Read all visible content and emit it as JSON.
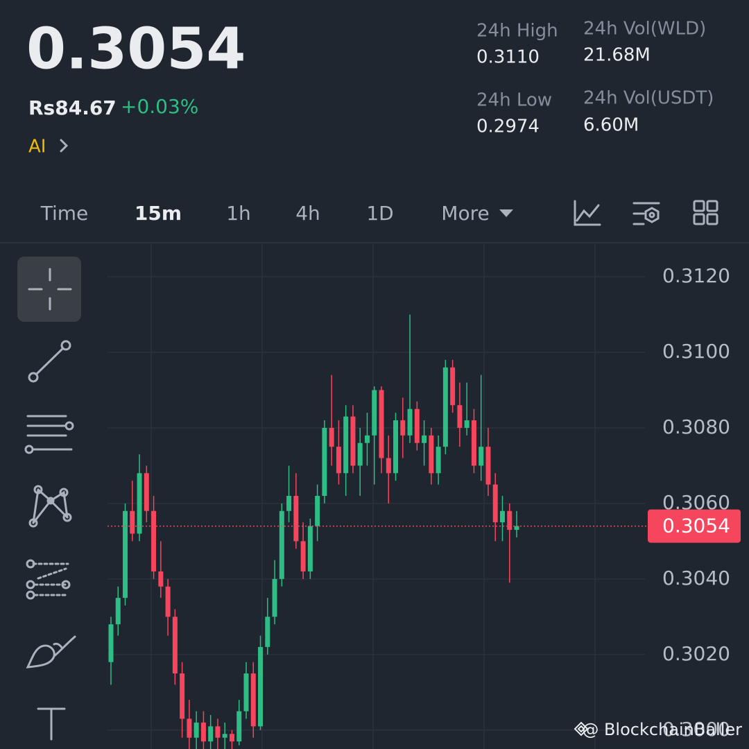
{
  "header": {
    "price": "0.3054",
    "fiat_price": "Rs84.67",
    "change": "+0.03%",
    "ai_label": "AI",
    "stats": [
      {
        "label": "24h High",
        "value": "0.3110"
      },
      {
        "label": "24h Low",
        "value": "0.2974"
      },
      {
        "label": "24h Vol(WLD)",
        "value": "21.68M"
      },
      {
        "label": "24h Vol(USDT)",
        "value": "6.60M"
      }
    ]
  },
  "tabs": [
    "Time",
    "15m",
    "1h",
    "4h",
    "1D",
    "More"
  ],
  "active_tab": 1,
  "watermark": "@ BlockchainBaller",
  "chart_data": {
    "type": "candlestick",
    "up_color": "#2ebd85",
    "down_color": "#f6465d",
    "grid": true,
    "ylim": [
      0.2995,
      0.3129
    ],
    "yticks": [
      {
        "value": 0.312,
        "label": "0.3120"
      },
      {
        "value": 0.31,
        "label": "0.3100"
      },
      {
        "value": 0.308,
        "label": "0.3080"
      },
      {
        "value": 0.306,
        "label": "0.3060"
      },
      {
        "value": 0.304,
        "label": "0.3040"
      },
      {
        "value": 0.302,
        "label": "0.3020"
      },
      {
        "value": 0.3,
        "label": "0.3000"
      }
    ],
    "last_price": 0.3054,
    "candles": [
      [
        0.3018,
        0.303,
        0.3012,
        0.3028
      ],
      [
        0.3028,
        0.3038,
        0.3025,
        0.3035
      ],
      [
        0.3035,
        0.306,
        0.3033,
        0.3058
      ],
      [
        0.3058,
        0.3066,
        0.305,
        0.3052
      ],
      [
        0.3052,
        0.3073,
        0.305,
        0.3068
      ],
      [
        0.3068,
        0.307,
        0.3055,
        0.3058
      ],
      [
        0.3058,
        0.3062,
        0.304,
        0.3042
      ],
      [
        0.3042,
        0.305,
        0.3035,
        0.3038
      ],
      [
        0.3038,
        0.304,
        0.3025,
        0.303
      ],
      [
        0.303,
        0.3032,
        0.3012,
        0.3015
      ],
      [
        0.3015,
        0.3018,
        0.2998,
        0.3003
      ],
      [
        0.3003,
        0.3008,
        0.2995,
        0.2998
      ],
      [
        0.2998,
        0.3005,
        0.2995,
        0.3002
      ],
      [
        0.3002,
        0.3005,
        0.2995,
        0.2997
      ],
      [
        0.2997,
        0.3004,
        0.2995,
        0.3001
      ],
      [
        0.3001,
        0.3003,
        0.2995,
        0.2998
      ],
      [
        0.2998,
        0.3002,
        0.2995,
        0.2999
      ],
      [
        0.2999,
        0.3,
        0.2995,
        0.2997
      ],
      [
        0.2997,
        0.3008,
        0.2996,
        0.3005
      ],
      [
        0.3005,
        0.3018,
        0.3003,
        0.3015
      ],
      [
        0.3015,
        0.3018,
        0.2998,
        0.3001
      ],
      [
        0.3001,
        0.3025,
        0.3,
        0.3022
      ],
      [
        0.3022,
        0.3035,
        0.302,
        0.303
      ],
      [
        0.303,
        0.3045,
        0.3028,
        0.304
      ],
      [
        0.304,
        0.306,
        0.3038,
        0.3058
      ],
      [
        0.3058,
        0.307,
        0.3055,
        0.3062
      ],
      [
        0.3062,
        0.3068,
        0.3048,
        0.305
      ],
      [
        0.305,
        0.3055,
        0.304,
        0.3042
      ],
      [
        0.3042,
        0.3056,
        0.304,
        0.3054
      ],
      [
        0.3054,
        0.3065,
        0.305,
        0.3062
      ],
      [
        0.3062,
        0.3082,
        0.306,
        0.308
      ],
      [
        0.308,
        0.3094,
        0.307,
        0.3075
      ],
      [
        0.3075,
        0.3082,
        0.3065,
        0.3068
      ],
      [
        0.3068,
        0.3086,
        0.3062,
        0.3083
      ],
      [
        0.3083,
        0.3086,
        0.3068,
        0.307
      ],
      [
        0.307,
        0.308,
        0.3062,
        0.3076
      ],
      [
        0.3076,
        0.3084,
        0.307,
        0.3078
      ],
      [
        0.3078,
        0.3091,
        0.3065,
        0.309
      ],
      [
        0.309,
        0.3091,
        0.3068,
        0.3072
      ],
      [
        0.3072,
        0.3078,
        0.306,
        0.3068
      ],
      [
        0.3068,
        0.3084,
        0.3066,
        0.3082
      ],
      [
        0.3082,
        0.3088,
        0.3072,
        0.3078
      ],
      [
        0.3078,
        0.311,
        0.3076,
        0.3085
      ],
      [
        0.3085,
        0.3087,
        0.3074,
        0.3076
      ],
      [
        0.3076,
        0.3082,
        0.307,
        0.3078
      ],
      [
        0.3078,
        0.308,
        0.3065,
        0.3068
      ],
      [
        0.3068,
        0.3078,
        0.3065,
        0.3075
      ],
      [
        0.3075,
        0.3098,
        0.3073,
        0.3096
      ],
      [
        0.3096,
        0.3098,
        0.3084,
        0.3086
      ],
      [
        0.3086,
        0.3092,
        0.3075,
        0.308
      ],
      [
        0.308,
        0.3092,
        0.3078,
        0.3082
      ],
      [
        0.3082,
        0.3085,
        0.3068,
        0.307
      ],
      [
        0.307,
        0.3094,
        0.3066,
        0.3075
      ],
      [
        0.3075,
        0.308,
        0.3062,
        0.3065
      ],
      [
        0.3065,
        0.3068,
        0.305,
        0.3055
      ],
      [
        0.3055,
        0.3062,
        0.305,
        0.3058
      ],
      [
        0.3058,
        0.306,
        0.3039,
        0.3053
      ],
      [
        0.3053,
        0.3058,
        0.3051,
        0.3054
      ]
    ]
  }
}
